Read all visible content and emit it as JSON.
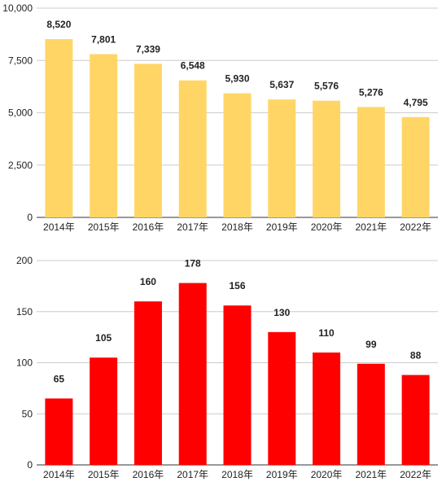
{
  "chart_data": [
    {
      "type": "bar",
      "categories": [
        "2014年",
        "2015年",
        "2016年",
        "2017年",
        "2018年",
        "2019年",
        "2020年",
        "2021年",
        "2022年"
      ],
      "values": [
        8520,
        7801,
        7339,
        6548,
        5930,
        5637,
        5576,
        5276,
        4795
      ],
      "data_labels": [
        "8,520",
        "7,801",
        "7,339",
        "6,548",
        "5,930",
        "5,637",
        "5,576",
        "5,276",
        "4,795"
      ],
      "yticks": [
        "0",
        "2,500",
        "5,000",
        "7,500",
        "10,000"
      ],
      "ylim": [
        0,
        10000
      ],
      "grid": true,
      "color": "#FFD666"
    },
    {
      "type": "bar",
      "categories": [
        "2014年",
        "2015年",
        "2016年",
        "2017年",
        "2018年",
        "2019年",
        "2020年",
        "2021年",
        "2022年"
      ],
      "values": [
        65,
        105,
        160,
        178,
        156,
        130,
        110,
        99,
        88
      ],
      "data_labels": [
        "65",
        "105",
        "160",
        "178",
        "156",
        "130",
        "110",
        "99",
        "88"
      ],
      "yticks": [
        "0",
        "50",
        "100",
        "150",
        "200"
      ],
      "ylim": [
        0,
        200
      ],
      "grid": true,
      "color": "#FF0000"
    }
  ]
}
